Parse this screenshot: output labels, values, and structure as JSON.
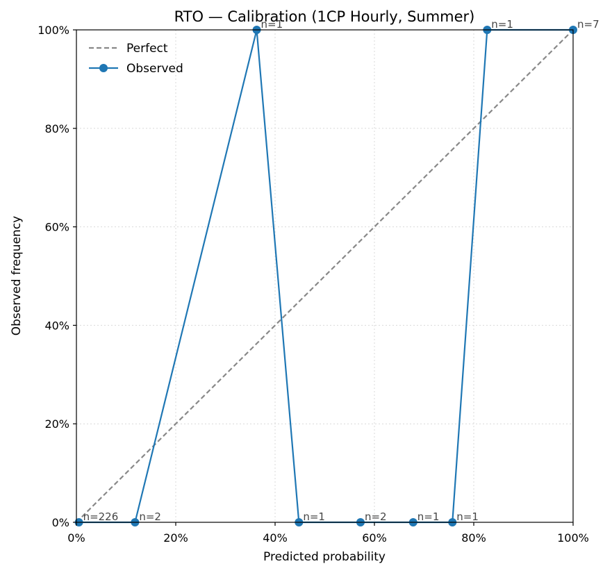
{
  "chart_data": {
    "type": "line",
    "title": "RTO — Calibration (1CP Hourly, Summer)",
    "xlabel": "Predicted probability",
    "ylabel": "Observed frequency",
    "xlim": [
      0,
      1
    ],
    "ylim": [
      0,
      1
    ],
    "x_ticks": [
      0,
      0.2,
      0.4,
      0.6,
      0.8,
      1.0
    ],
    "y_ticks": [
      0,
      0.2,
      0.4,
      0.6,
      0.8,
      1.0
    ],
    "x_tick_labels": [
      "0%",
      "20%",
      "40%",
      "60%",
      "80%",
      "100%"
    ],
    "y_tick_labels": [
      "0%",
      "20%",
      "40%",
      "60%",
      "80%",
      "100%"
    ],
    "grid": true,
    "legend_position": "top-left",
    "series": [
      {
        "name": "Perfect",
        "style": "dashed",
        "color": "#888888",
        "x": [
          0,
          1
        ],
        "y": [
          0,
          1
        ]
      },
      {
        "name": "Observed",
        "style": "solid-with-markers",
        "color": "#1f77b4",
        "x": [
          0.005,
          0.118,
          0.363,
          0.448,
          0.572,
          0.678,
          0.757,
          0.827,
          1.0
        ],
        "y": [
          0,
          0,
          1,
          0,
          0,
          0,
          0,
          1,
          1
        ],
        "labels": [
          "n=226",
          "n=2",
          "n=1",
          "n=1",
          "n=2",
          "n=1",
          "n=1",
          "n=1",
          "n=7"
        ]
      }
    ]
  }
}
